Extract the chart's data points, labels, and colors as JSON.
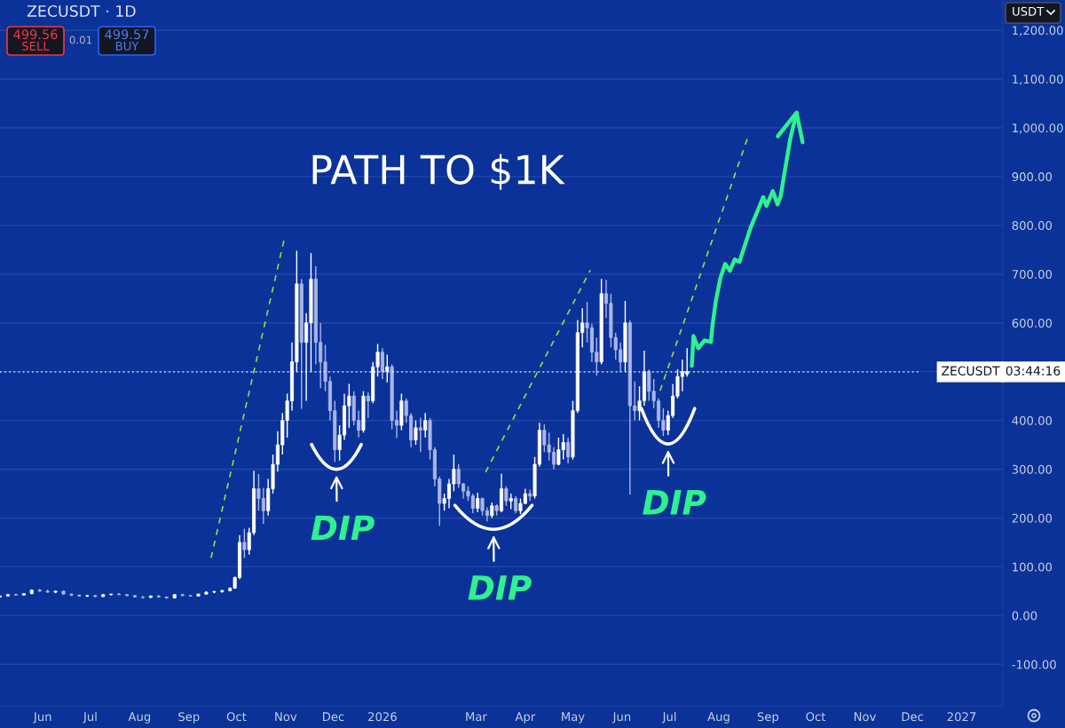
{
  "chart_data": {
    "type": "candlestick",
    "title": "ZECUSDT · 1D",
    "xlim": [
      "2025-05-05",
      "2027-01-27"
    ],
    "ylim": [
      -185,
      1262
    ],
    "xticks": [
      {
        "value": "2025-06-01",
        "label": "Jun"
      },
      {
        "value": "2025-07-01",
        "label": "Jul"
      },
      {
        "value": "2025-08-01",
        "label": "Aug"
      },
      {
        "value": "2025-09-01",
        "label": "Sep"
      },
      {
        "value": "2025-10-01",
        "label": "Oct"
      },
      {
        "value": "2025-11-01",
        "label": "Nov"
      },
      {
        "value": "2025-12-01",
        "label": "Dec"
      },
      {
        "value": "2026-01-01",
        "label": "2026"
      },
      {
        "value": "2026-03-01",
        "label": "Mar"
      },
      {
        "value": "2026-04-01",
        "label": "Apr"
      },
      {
        "value": "2026-05-01",
        "label": "May"
      },
      {
        "value": "2026-06-01",
        "label": "Jun"
      },
      {
        "value": "2026-07-01",
        "label": "Jul"
      },
      {
        "value": "2026-08-01",
        "label": "Aug"
      },
      {
        "value": "2026-09-01",
        "label": "Sep"
      },
      {
        "value": "2026-10-01",
        "label": "Oct"
      },
      {
        "value": "2026-11-01",
        "label": "Nov"
      },
      {
        "value": "2026-12-01",
        "label": "Dec"
      },
      {
        "value": "2027-01-01",
        "label": "2027"
      }
    ],
    "yticks": [
      {
        "value": -100,
        "label": "-100.00"
      },
      {
        "value": 0,
        "label": "0.00"
      },
      {
        "value": 100,
        "label": "100.00"
      },
      {
        "value": 200,
        "label": "200.00"
      },
      {
        "value": 300,
        "label": "300.00"
      },
      {
        "value": 400,
        "label": "400.00"
      },
      {
        "value": 500,
        "label": null
      },
      {
        "value": 600,
        "label": "600.00"
      },
      {
        "value": 700,
        "label": "700.00"
      },
      {
        "value": 800,
        "label": "800.00"
      },
      {
        "value": 900,
        "label": "900.00"
      },
      {
        "value": 1000,
        "label": "1,000.00"
      },
      {
        "value": 1100,
        "label": "1,100.00"
      },
      {
        "value": 1200,
        "label": "1,200.00"
      }
    ],
    "grid": "y",
    "ref_lines": [
      {
        "axis": "y",
        "value": 499.57,
        "label": "ZECUSDT",
        "color": "#ffffff",
        "line_style": "dotted"
      }
    ],
    "annotations": [
      "499.56",
      "SELL",
      "0.01",
      "499.57",
      "BUY",
      "USDT",
      "03:44:16",
      "PATH TO $1K",
      {
        "text": "DIP",
        "x": "2025-12-03",
        "y": 318
      },
      {
        "text": "DIP",
        "x": "2026-03-12",
        "y": 195
      },
      {
        "text": "DIP",
        "x": "2026-06-30",
        "y": 370
      }
    ],
    "series": [
      {
        "colors": [
          "#ffffff",
          "#ffffff",
          "#a9b6e8",
          "#ffffff",
          "#ffffff",
          "#a9b6e8",
          "#a9b6e8",
          "#ffffff",
          "#a9b6e8",
          "#a9b6e8",
          "#a9b6e8",
          "#ffffff",
          "#a9b6e8",
          "#ffffff",
          "#ffffff",
          "#a9b6e8",
          "#a9b6e8",
          "#a9b6e8",
          "#a9b6e8",
          "#ffffff",
          "#a9b6e8",
          "#a9b6e8",
          "#ffffff",
          "#a9b6e8",
          "#a9b6e8",
          "#ffffff",
          "#ffffff",
          "#ffffff",
          "#ffffff",
          "#ffffff",
          "#ffffff",
          "#ffffff",
          "#a9b6e8",
          "#ffffff",
          "#ffffff",
          "#a9b6e8",
          "#a9b6e8",
          "#ffffff",
          "#ffffff",
          "#ffffff",
          "#ffffff",
          "#ffffff",
          "#ffffff",
          "#ffffff",
          "#a9b6e8",
          "#ffffff",
          "#ffffff",
          "#a9b6e8",
          "#a9b6e8",
          "#a9b6e8",
          "#a9b6e8",
          "#a9b6e8",
          "#ffffff",
          "#ffffff",
          "#ffffff",
          "#a9b6e8",
          "#a9b6e8",
          "#ffffff",
          "#a9b6e8",
          "#ffffff",
          "#ffffff",
          "#a9b6e8",
          "#ffffff",
          "#a9b6e8",
          "#a9b6e8",
          "#ffffff",
          "#a9b6e8",
          "#a9b6e8",
          "#ffffff",
          "#a9b6e8",
          "#ffffff",
          "#a9b6e8",
          "#a9b6e8",
          "#a9b6e8",
          "#ffffff",
          "#ffffff",
          "#ffffff",
          "#a9b6e8",
          "#a9b6e8",
          "#a9b6e8",
          "#a9b6e8",
          "#ffffff",
          "#a9b6e8",
          "#a9b6e8",
          "#ffffff",
          "#a9b6e8",
          "#ffffff",
          "#a9b6e8",
          "#ffffff",
          "#a9b6e8",
          "#ffffff",
          "#ffffff",
          "#a9b6e8",
          "#ffffff",
          "#ffffff",
          "#a9b6e8",
          "#a9b6e8",
          "#a9b6e8",
          "#ffffff",
          "#ffffff",
          "#a9b6e8",
          "#ffffff",
          "#ffffff",
          "#ffffff",
          "#a9b6e8",
          "#a9b6e8",
          "#a9b6e8",
          "#ffffff",
          "#a9b6e8",
          "#a9b6e8",
          "#a9b6e8",
          "#a9b6e8",
          "#ffffff",
          "#a9b6e8",
          "#a9b6e8",
          "#ffffff",
          "#ffffff",
          "#a9b6e8",
          "#a9b6e8",
          "#a9b6e8",
          "#a9b6e8",
          "#ffffff",
          "#ffffff",
          "#ffffff",
          "#ffffff",
          "#ffffff"
        ],
        "x": [
          "2025-05-05",
          "2025-05-10",
          "2025-05-15",
          "2025-05-20",
          "2025-05-25",
          "2025-05-30",
          "2025-06-04",
          "2025-06-09",
          "2025-06-14",
          "2025-06-19",
          "2025-06-24",
          "2025-06-29",
          "2025-07-04",
          "2025-07-09",
          "2025-07-14",
          "2025-07-19",
          "2025-07-24",
          "2025-07-29",
          "2025-08-03",
          "2025-08-08",
          "2025-08-13",
          "2025-08-18",
          "2025-08-23",
          "2025-08-28",
          "2025-09-02",
          "2025-09-07",
          "2025-09-12",
          "2025-09-17",
          "2025-09-22",
          "2025-09-27",
          "2025-09-30",
          "2025-10-03",
          "2025-10-06",
          "2025-10-09",
          "2025-10-12",
          "2025-10-15",
          "2025-10-18",
          "2025-10-21",
          "2025-10-24",
          "2025-10-27",
          "2025-10-30",
          "2025-11-02",
          "2025-11-05",
          "2025-11-08",
          "2025-11-11",
          "2025-11-14",
          "2025-11-17",
          "2025-11-20",
          "2025-11-23",
          "2025-11-26",
          "2025-11-29",
          "2025-12-02",
          "2025-12-05",
          "2025-12-08",
          "2025-12-11",
          "2025-12-14",
          "2025-12-17",
          "2025-12-20",
          "2025-12-23",
          "2025-12-26",
          "2025-12-29",
          "2026-01-01",
          "2026-01-04",
          "2026-01-07",
          "2026-01-10",
          "2026-01-13",
          "2026-01-16",
          "2026-01-19",
          "2026-01-22",
          "2026-01-25",
          "2026-01-28",
          "2026-01-31",
          "2026-02-03",
          "2026-02-06",
          "2026-02-09",
          "2026-02-12",
          "2026-02-15",
          "2026-02-18",
          "2026-02-21",
          "2026-02-24",
          "2026-02-27",
          "2026-03-02",
          "2026-03-05",
          "2026-03-08",
          "2026-03-11",
          "2026-03-14",
          "2026-03-17",
          "2026-03-20",
          "2026-03-23",
          "2026-03-26",
          "2026-03-29",
          "2026-04-01",
          "2026-04-04",
          "2026-04-07",
          "2026-04-10",
          "2026-04-13",
          "2026-04-16",
          "2026-04-19",
          "2026-04-22",
          "2026-04-25",
          "2026-04-28",
          "2026-05-01",
          "2026-05-04",
          "2026-05-07",
          "2026-05-10",
          "2026-05-13",
          "2026-05-16",
          "2026-05-19",
          "2026-05-22",
          "2026-05-25",
          "2026-05-28",
          "2026-05-31",
          "2026-06-03",
          "2026-06-06",
          "2026-06-09",
          "2026-06-12",
          "2026-06-15",
          "2026-06-18",
          "2026-06-21",
          "2026-06-24",
          "2026-06-27",
          "2026-06-30",
          "2026-07-03",
          "2026-07-06",
          "2026-07-09",
          "2026-07-12"
        ],
        "ohlc": [
          [
            38,
            41,
            37,
            40
          ],
          [
            40,
            44,
            39,
            43
          ],
          [
            43,
            45,
            41,
            42
          ],
          [
            42,
            46,
            41,
            45
          ],
          [
            45,
            54,
            44,
            52
          ],
          [
            52,
            55,
            49,
            50
          ],
          [
            50,
            53,
            47,
            48
          ],
          [
            48,
            51,
            46,
            50
          ],
          [
            50,
            51,
            43,
            44
          ],
          [
            44,
            45,
            40,
            42
          ],
          [
            42,
            43,
            39,
            40
          ],
          [
            40,
            42,
            38,
            41
          ],
          [
            41,
            42,
            38,
            39
          ],
          [
            39,
            44,
            38,
            43
          ],
          [
            43,
            45,
            41,
            44
          ],
          [
            44,
            46,
            42,
            43
          ],
          [
            43,
            44,
            40,
            41
          ],
          [
            41,
            42,
            37,
            38
          ],
          [
            38,
            40,
            35,
            37
          ],
          [
            37,
            41,
            36,
            40
          ],
          [
            40,
            42,
            37,
            38
          ],
          [
            38,
            39,
            35,
            36
          ],
          [
            36,
            44,
            35,
            43
          ],
          [
            43,
            44,
            40,
            41
          ],
          [
            41,
            42,
            39,
            40
          ],
          [
            40,
            45,
            39,
            44
          ],
          [
            44,
            50,
            43,
            48
          ],
          [
            48,
            51,
            46,
            49
          ],
          [
            49,
            53,
            47,
            51
          ],
          [
            51,
            58,
            50,
            56
          ],
          [
            56,
            80,
            55,
            78
          ],
          [
            78,
            165,
            75,
            150
          ],
          [
            150,
            178,
            118,
            135
          ],
          [
            135,
            180,
            125,
            170
          ],
          [
            170,
            297,
            165,
            260
          ],
          [
            260,
            290,
            215,
            240
          ],
          [
            240,
            262,
            188,
            215
          ],
          [
            215,
            280,
            205,
            260
          ],
          [
            260,
            330,
            250,
            310
          ],
          [
            310,
            378,
            295,
            350
          ],
          [
            350,
            415,
            330,
            400
          ],
          [
            400,
            455,
            365,
            440
          ],
          [
            440,
            560,
            420,
            520
          ],
          [
            520,
            748,
            500,
            680
          ],
          [
            680,
            690,
            424,
            560
          ],
          [
            560,
            620,
            440,
            600
          ],
          [
            600,
            743,
            500,
            690
          ],
          [
            690,
            716,
            515,
            560
          ],
          [
            560,
            600,
            466,
            520
          ],
          [
            520,
            555,
            460,
            480
          ],
          [
            480,
            490,
            400,
            420
          ],
          [
            420,
            440,
            315,
            340
          ],
          [
            340,
            390,
            318,
            370
          ],
          [
            370,
            455,
            360,
            430
          ],
          [
            430,
            475,
            385,
            450
          ],
          [
            450,
            460,
            390,
            400
          ],
          [
            400,
            420,
            365,
            380
          ],
          [
            380,
            460,
            375,
            450
          ],
          [
            450,
            458,
            405,
            440
          ],
          [
            440,
            520,
            435,
            510
          ],
          [
            510,
            557,
            490,
            540
          ],
          [
            540,
            548,
            485,
            500
          ],
          [
            500,
            535,
            478,
            510
          ],
          [
            510,
            515,
            382,
            400
          ],
          [
            400,
            420,
            364,
            390
          ],
          [
            390,
            455,
            380,
            440
          ],
          [
            440,
            445,
            395,
            410
          ],
          [
            410,
            415,
            345,
            360
          ],
          [
            360,
            400,
            350,
            385
          ],
          [
            385,
            405,
            335,
            380
          ],
          [
            380,
            415,
            365,
            400
          ],
          [
            400,
            405,
            320,
            340
          ],
          [
            340,
            345,
            265,
            280
          ],
          [
            280,
            285,
            184,
            230
          ],
          [
            230,
            250,
            215,
            240
          ],
          [
            240,
            280,
            220,
            270
          ],
          [
            270,
            330,
            255,
            300
          ],
          [
            300,
            310,
            262,
            270
          ],
          [
            270,
            272,
            240,
            255
          ],
          [
            255,
            265,
            235,
            245
          ],
          [
            245,
            250,
            210,
            220
          ],
          [
            220,
            252,
            212,
            240
          ],
          [
            240,
            242,
            205,
            215
          ],
          [
            215,
            222,
            193,
            205
          ],
          [
            205,
            232,
            200,
            225
          ],
          [
            225,
            228,
            205,
            215
          ],
          [
            215,
            291,
            212,
            260
          ],
          [
            260,
            265,
            225,
            235
          ],
          [
            235,
            250,
            218,
            240
          ],
          [
            240,
            245,
            210,
            215
          ],
          [
            215,
            240,
            208,
            230
          ],
          [
            230,
            260,
            228,
            250
          ],
          [
            250,
            258,
            235,
            245
          ],
          [
            245,
            325,
            240,
            310
          ],
          [
            310,
            395,
            305,
            380
          ],
          [
            380,
            392,
            335,
            350
          ],
          [
            350,
            375,
            318,
            335
          ],
          [
            335,
            345,
            300,
            310
          ],
          [
            310,
            365,
            308,
            340
          ],
          [
            340,
            372,
            320,
            355
          ],
          [
            355,
            365,
            312,
            325
          ],
          [
            325,
            440,
            320,
            420
          ],
          [
            420,
            606,
            415,
            580
          ],
          [
            580,
            630,
            550,
            600
          ],
          [
            600,
            643,
            560,
            590
          ],
          [
            590,
            598,
            520,
            540
          ],
          [
            540,
            570,
            492,
            520
          ],
          [
            520,
            690,
            515,
            660
          ],
          [
            660,
            688,
            610,
            640
          ],
          [
            640,
            660,
            550,
            570
          ],
          [
            570,
            580,
            525,
            545
          ],
          [
            545,
            560,
            500,
            520
          ],
          [
            520,
            645,
            500,
            600
          ],
          [
            600,
            605,
            248,
            430
          ],
          [
            430,
            480,
            400,
            420
          ],
          [
            420,
            470,
            400,
            440
          ],
          [
            440,
            543,
            430,
            500
          ],
          [
            500,
            505,
            440,
            460
          ],
          [
            460,
            485,
            425,
            440
          ],
          [
            440,
            445,
            385,
            400
          ],
          [
            400,
            425,
            368,
            380
          ],
          [
            380,
            420,
            370,
            410
          ],
          [
            410,
            475,
            405,
            450
          ],
          [
            450,
            505,
            445,
            490
          ],
          [
            490,
            525,
            460,
            500
          ],
          [
            495,
            548,
            490,
            500
          ]
        ]
      },
      {
        "type": "line",
        "color": "#a6d43c",
        "line_style": "dashed",
        "x": [
          "2025-09-15",
          "2025-10-31"
        ],
        "values": [
          118,
          770
        ]
      },
      {
        "type": "line",
        "color": "#a6d43c",
        "line_style": "dashed",
        "x": [
          "2026-03-07",
          "2026-05-12"
        ],
        "values": [
          294,
          708
        ]
      },
      {
        "type": "line",
        "color": "#a6d43c",
        "line_style": "dashed",
        "x": [
          "2026-06-25",
          "2026-08-19"
        ],
        "values": [
          461,
          978
        ]
      },
      {
        "type": "line",
        "color": "#2ef28d",
        "line_style": "solid",
        "x": [
          "2026-07-15",
          "2026-07-16",
          "2026-07-19",
          "2026-07-23",
          "2026-07-27",
          "2026-07-28",
          "2026-07-30",
          "2026-08-02",
          "2026-08-05",
          "2026-08-08",
          "2026-08-11",
          "2026-08-14",
          "2026-08-21",
          "2026-08-29",
          "2026-08-31",
          "2026-09-04",
          "2026-09-07",
          "2026-09-09",
          "2026-09-11",
          "2026-09-15",
          "2026-09-19"
        ],
        "values": [
          512,
          573,
          548,
          564,
          561,
          594,
          643,
          692,
          721,
          707,
          730,
          725,
          795,
          858,
          840,
          870,
          843,
          860,
          900,
          977,
          1031
        ]
      }
    ]
  }
}
